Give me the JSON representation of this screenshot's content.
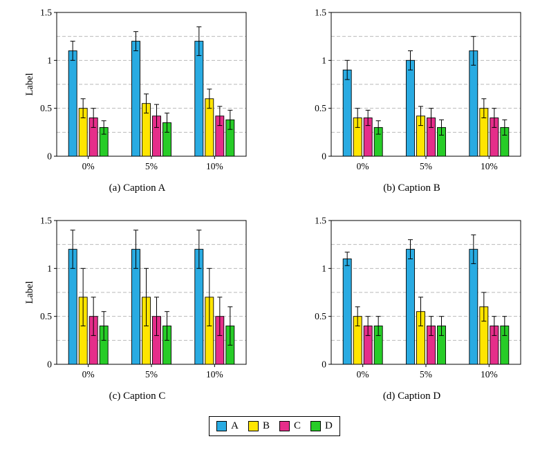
{
  "figure": {
    "ylim": [
      0,
      1.5
    ],
    "y_ticks": [
      0,
      0.5,
      1,
      1.5
    ],
    "grid_lines": [
      0.25,
      0.5,
      0.75,
      1,
      1.25
    ],
    "grid_color": "#b9b9b9",
    "colors": {
      "A": "#29abe2",
      "B": "#ffe500",
      "C": "#e52e8a",
      "D": "#27cc27"
    }
  },
  "chart_data": [
    {
      "type": "bar",
      "caption": "(a) Caption A",
      "ylabel": "Label",
      "categories": [
        "0%",
        "5%",
        "10%"
      ],
      "ylim": [
        0,
        1.5
      ],
      "series": [
        {
          "name": "A",
          "values": [
            1.1,
            1.2,
            1.2
          ],
          "errors": [
            0.1,
            0.1,
            0.15
          ]
        },
        {
          "name": "B",
          "values": [
            0.5,
            0.55,
            0.6
          ],
          "errors": [
            0.1,
            0.1,
            0.1
          ]
        },
        {
          "name": "C",
          "values": [
            0.4,
            0.42,
            0.42
          ],
          "errors": [
            0.1,
            0.12,
            0.1
          ]
        },
        {
          "name": "D",
          "values": [
            0.3,
            0.35,
            0.38
          ],
          "errors": [
            0.07,
            0.1,
            0.1
          ]
        }
      ]
    },
    {
      "type": "bar",
      "caption": "(b) Caption B",
      "ylabel": "",
      "categories": [
        "0%",
        "5%",
        "10%"
      ],
      "ylim": [
        0,
        1.5
      ],
      "series": [
        {
          "name": "A",
          "values": [
            0.9,
            1.0,
            1.1
          ],
          "errors": [
            0.1,
            0.1,
            0.15
          ]
        },
        {
          "name": "B",
          "values": [
            0.4,
            0.42,
            0.5
          ],
          "errors": [
            0.1,
            0.1,
            0.1
          ]
        },
        {
          "name": "C",
          "values": [
            0.4,
            0.4,
            0.4
          ],
          "errors": [
            0.08,
            0.1,
            0.1
          ]
        },
        {
          "name": "D",
          "values": [
            0.3,
            0.3,
            0.3
          ],
          "errors": [
            0.07,
            0.08,
            0.08
          ]
        }
      ]
    },
    {
      "type": "bar",
      "caption": "(c) Caption C",
      "ylabel": "Label",
      "categories": [
        "0%",
        "5%",
        "10%"
      ],
      "ylim": [
        0,
        1.5
      ],
      "series": [
        {
          "name": "A",
          "values": [
            1.2,
            1.2,
            1.2
          ],
          "errors": [
            0.2,
            0.2,
            0.2
          ]
        },
        {
          "name": "B",
          "values": [
            0.7,
            0.7,
            0.7
          ],
          "errors": [
            0.3,
            0.3,
            0.3
          ]
        },
        {
          "name": "C",
          "values": [
            0.5,
            0.5,
            0.5
          ],
          "errors": [
            0.2,
            0.2,
            0.2
          ]
        },
        {
          "name": "D",
          "values": [
            0.4,
            0.4,
            0.4
          ],
          "errors": [
            0.15,
            0.15,
            0.2
          ]
        }
      ]
    },
    {
      "type": "bar",
      "caption": "(d) Caption D",
      "ylabel": "",
      "categories": [
        "0%",
        "5%",
        "10%"
      ],
      "ylim": [
        0,
        1.5
      ],
      "series": [
        {
          "name": "A",
          "values": [
            1.1,
            1.2,
            1.2
          ],
          "errors": [
            0.07,
            0.1,
            0.15
          ]
        },
        {
          "name": "B",
          "values": [
            0.5,
            0.55,
            0.6
          ],
          "errors": [
            0.1,
            0.15,
            0.15
          ]
        },
        {
          "name": "C",
          "values": [
            0.4,
            0.4,
            0.4
          ],
          "errors": [
            0.1,
            0.1,
            0.1
          ]
        },
        {
          "name": "D",
          "values": [
            0.4,
            0.4,
            0.4
          ],
          "errors": [
            0.1,
            0.1,
            0.1
          ]
        }
      ]
    }
  ],
  "legend": {
    "entries": [
      {
        "label": "A",
        "color": "#29abe2"
      },
      {
        "label": "B",
        "color": "#ffe500"
      },
      {
        "label": "C",
        "color": "#e52e8a"
      },
      {
        "label": "D",
        "color": "#27cc27"
      }
    ]
  }
}
